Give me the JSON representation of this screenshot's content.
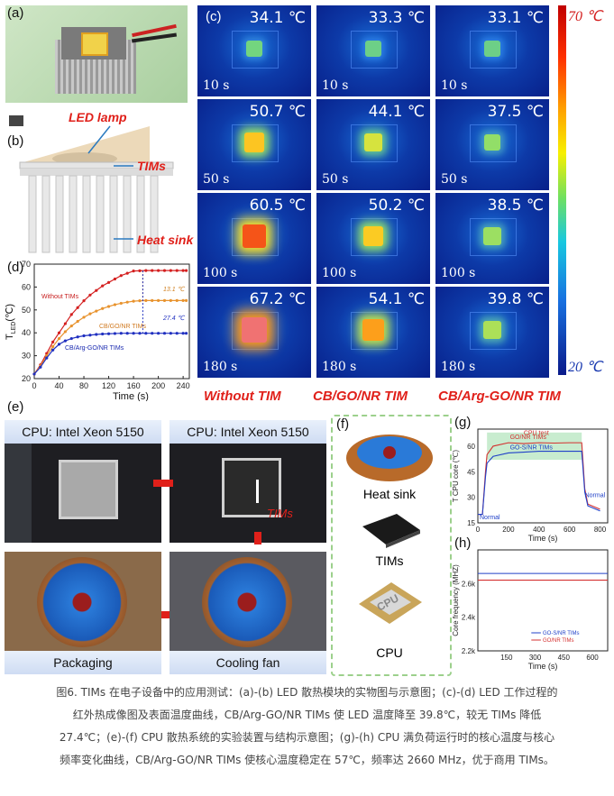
{
  "labels": {
    "a": "(a)",
    "b": "(b)",
    "c": "(c)",
    "d": "(d)",
    "e": "(e)",
    "f": "(f)",
    "g": "(g)",
    "h": "(h)"
  },
  "schematic": {
    "led_lamp": "LED lamp",
    "tims": "TIMs",
    "heat_sink": "Heat sink"
  },
  "thermal": {
    "colorbar_max": "70 ℃",
    "colorbar_min": "20 ℃",
    "rows": [
      {
        "time": "10 s",
        "temps": [
          "34.1 ℃",
          "33.3 ℃",
          "33.1 ℃"
        ],
        "levels": [
          0.28,
          0.26,
          0.26
        ]
      },
      {
        "time": "50 s",
        "temps": [
          "50.7 ℃",
          "44.1 ℃",
          "37.5 ℃"
        ],
        "levels": [
          0.61,
          0.48,
          0.35
        ]
      },
      {
        "time": "100 s",
        "temps": [
          "60.5 ℃",
          "50.2 ℃",
          "38.5 ℃"
        ],
        "levels": [
          0.81,
          0.6,
          0.37
        ]
      },
      {
        "time": "180 s",
        "temps": [
          "67.2 ℃",
          "54.1 ℃",
          "39.8 ℃"
        ],
        "levels": [
          0.94,
          0.68,
          0.4
        ]
      }
    ],
    "columns": [
      "Without TIM",
      "CB/GO/NR TIM",
      "CB/Arg-GO/NR TIM"
    ]
  },
  "chart_d": {
    "type": "line",
    "xlabel": "Time (s)",
    "ylabel": "T",
    "ylabel_sub": "LED",
    "ylabel_unit": "(℃)",
    "xlim": [
      0,
      250
    ],
    "ylim": [
      20,
      70
    ],
    "xticks": [
      "0",
      "40",
      "80",
      "120",
      "160",
      "200",
      "240"
    ],
    "yticks": [
      "20",
      "30",
      "40",
      "50",
      "60",
      "70"
    ],
    "annotations": {
      "delta1": "13.1 ℃",
      "delta2": "27.4 ℃"
    },
    "series": [
      {
        "name": "Without TIMs",
        "color": "#d42020"
      },
      {
        "name": "CB/GO/NR TIMs",
        "color": "#e8932e"
      },
      {
        "name": "CB/Arg-GO/NR TIMs",
        "color": "#2030c0"
      }
    ]
  },
  "chart_data": [
    {
      "type": "line",
      "xlabel": "Time (s)",
      "ylabel": "T LED (℃)",
      "xlim": [
        0,
        250
      ],
      "ylim": [
        20,
        70
      ],
      "x": [
        0,
        10,
        20,
        30,
        40,
        50,
        60,
        70,
        80,
        90,
        100,
        110,
        120,
        130,
        140,
        150,
        160,
        170,
        180,
        190,
        200,
        210,
        220,
        230,
        240,
        245
      ],
      "series": [
        {
          "name": "Without TIMs",
          "values": [
            22,
            26,
            31,
            36,
            40,
            44,
            48,
            51,
            54,
            56.5,
            58.5,
            60.5,
            62,
            63.5,
            65,
            66,
            67,
            67.1,
            67.2,
            67.2,
            67.2,
            67.2,
            67.2,
            67.2,
            67.2,
            67.2
          ]
        },
        {
          "name": "CB/GO/NR TIMs",
          "values": [
            22,
            25.5,
            30,
            34,
            37.5,
            40.5,
            43,
            45,
            46.8,
            48.3,
            49.5,
            50.6,
            51.5,
            52.3,
            52.9,
            53.4,
            53.8,
            54,
            54.1,
            54.1,
            54.1,
            54.1,
            54.1,
            54.1,
            54.1,
            54.1
          ]
        },
        {
          "name": "CB/Arg-GO/NR TIMs",
          "values": [
            22,
            25,
            29,
            32.5,
            35,
            36.5,
            37.5,
            38.2,
            38.7,
            39,
            39.3,
            39.5,
            39.6,
            39.7,
            39.8,
            39.8,
            39.8,
            39.8,
            39.8,
            39.8,
            39.8,
            39.8,
            39.8,
            39.8,
            39.8,
            39.8
          ]
        }
      ]
    },
    {
      "type": "line",
      "xlabel": "Time (s)",
      "ylabel": "T CPU core (℃)",
      "xlim": [
        0,
        850
      ],
      "ylim": [
        15,
        70
      ],
      "xticks": [
        "0",
        "200",
        "400",
        "600",
        "800"
      ],
      "yticks": [
        "15",
        "30",
        "45",
        "60"
      ],
      "annotations": [
        "CPU test",
        "Normal",
        "Normal"
      ],
      "x": [
        0,
        30,
        50,
        60,
        100,
        200,
        300,
        400,
        500,
        600,
        680,
        700,
        720,
        800
      ],
      "series": [
        {
          "name": "GO/NR TIMs",
          "color": "#d43030",
          "values": [
            20,
            20,
            45,
            55,
            60,
            62,
            61.5,
            62,
            61.8,
            62,
            62,
            35,
            26,
            23
          ]
        },
        {
          "name": "GO-S/NR TIMs",
          "color": "#2040c8",
          "values": [
            20,
            20,
            42,
            50,
            54,
            56,
            56.5,
            57,
            57,
            57,
            57,
            33,
            25,
            22
          ]
        }
      ]
    },
    {
      "type": "line",
      "xlabel": "Time (s)",
      "ylabel": "Core frequency (MHZ)",
      "xlim": [
        0,
        680
      ],
      "ylim": [
        2.2,
        2.8
      ],
      "xticks": [
        "150",
        "300",
        "450",
        "600"
      ],
      "yticks": [
        "2.2k",
        "2.4k",
        "2.6k"
      ],
      "x": [
        0,
        680
      ],
      "series": [
        {
          "name": "GO-S/NR TIMs",
          "color": "#2040c8",
          "values": [
            2.66,
            2.66
          ]
        },
        {
          "name": "GO/NR TIMs",
          "color": "#d43030",
          "values": [
            2.62,
            2.62
          ]
        }
      ]
    }
  ],
  "photos": {
    "cpu_title": "CPU: Intel Xeon 5150",
    "tims_text": "TIMs",
    "packaging": "Packaging",
    "cooling_fan": "Cooling fan"
  },
  "parts_f": {
    "heat_sink": "Heat sink",
    "tims": "TIMs",
    "cpu": "CPU",
    "cpu_chip": "CPU"
  },
  "caption": [
    "图6. TIMs 在电子设备中的应用测试：(a)-(b) LED 散热模块的实物图与示意图；(c)-(d) LED 工作过程的",
    "红外热成像图及表面温度曲线，CB/Arg-GO/NR TIMs 使 LED 温度降至 39.8℃，较无 TIMs 降低",
    "27.4℃；(e)-(f) CPU 散热系统的实验装置与结构示意图；(g)-(h) CPU 满负荷运行时的核心温度与核心",
    "频率变化曲线，CB/Arg-GO/NR TIMs 使核心温度稳定在 57℃，频率达 2660 MHz，优于商用 TIMs。"
  ]
}
